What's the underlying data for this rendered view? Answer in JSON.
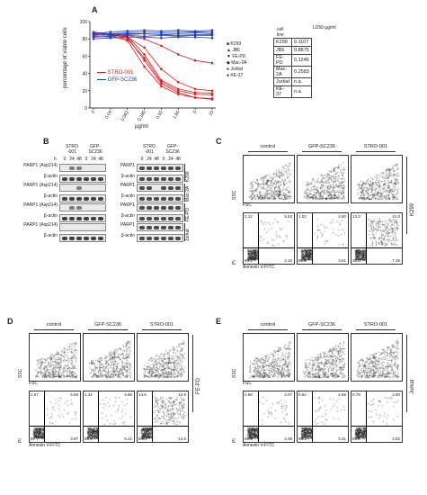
{
  "panelA": {
    "letter": "A",
    "ylabel": "percentage of viable cells",
    "xlabel": "µg/ml",
    "legend_drugs": [
      "STRO-001",
      "GFP-SC236"
    ],
    "legend_cells": [
      "K299",
      "JB6",
      "FE-PD",
      "Mac-2A",
      "Jurkat",
      "KE-37"
    ],
    "table": {
      "head1": "cell line",
      "head2": "LD50 µg/ml",
      "rows": [
        [
          "K299",
          "0.1107"
        ],
        [
          "JB6",
          "0.8875"
        ],
        [
          "FE-PD",
          "0.1245"
        ],
        [
          "Mac-2A",
          "0.2583"
        ],
        [
          "Jurkat",
          "n.a."
        ],
        [
          "KE-37",
          "n.a."
        ]
      ]
    },
    "chart_data": {
      "type": "line",
      "categories": [
        "0",
        "0.04",
        "0.062",
        "0.185",
        "0.55",
        "1.66",
        "5",
        "15"
      ],
      "ylim": [
        0,
        100
      ],
      "yticks": [
        "0",
        "20",
        "40",
        "60",
        "80",
        "100"
      ],
      "series": [
        {
          "name": "STRO-001 K299",
          "color": "#e41a1c",
          "values": [
            88,
            85,
            82,
            55,
            28,
            18,
            12,
            10
          ]
        },
        {
          "name": "STRO-001 JB6",
          "color": "#e41a1c",
          "values": [
            86,
            86,
            84,
            80,
            72,
            62,
            55,
            52
          ]
        },
        {
          "name": "STRO-001 FE-PD",
          "color": "#e41a1c",
          "values": [
            87,
            84,
            78,
            48,
            25,
            16,
            12,
            11
          ]
        },
        {
          "name": "STRO-001 Mac-2A",
          "color": "#e41a1c",
          "values": [
            85,
            84,
            82,
            70,
            45,
            30,
            22,
            20
          ]
        },
        {
          "name": "STRO-001 Jurkat",
          "color": "#e41a1c",
          "values": [
            85,
            84,
            83,
            62,
            32,
            22,
            18,
            17
          ]
        },
        {
          "name": "STRO-001 KE-37",
          "color": "#e41a1c",
          "values": [
            83,
            82,
            80,
            58,
            30,
            20,
            16,
            15
          ]
        },
        {
          "name": "GFP-SC236 K299",
          "color": "#1f3fbf",
          "values": [
            86,
            88,
            89,
            90,
            89,
            90,
            89,
            90
          ]
        },
        {
          "name": "GFP-SC236 JB6",
          "color": "#1f3fbf",
          "values": [
            84,
            85,
            86,
            86,
            85,
            86,
            87,
            86
          ]
        },
        {
          "name": "GFP-SC236 FE-PD",
          "color": "#1f3fbf",
          "values": [
            82,
            83,
            84,
            83,
            84,
            83,
            84,
            84
          ]
        },
        {
          "name": "GFP-SC236 Mac-2A",
          "color": "#1f3fbf",
          "values": [
            85,
            84,
            85,
            86,
            85,
            84,
            85,
            85
          ]
        },
        {
          "name": "GFP-SC236 Jurkat",
          "color": "#1f3fbf",
          "values": [
            80,
            81,
            82,
            82,
            81,
            82,
            82,
            81
          ]
        },
        {
          "name": "GFP-SC236 KE-37",
          "color": "#1f3fbf",
          "values": [
            87,
            86,
            87,
            88,
            87,
            88,
            88,
            88
          ]
        }
      ]
    }
  },
  "panelB": {
    "letter": "B",
    "group1": "STRO -001",
    "group2": "GFP- SC236",
    "h_label": "h",
    "timepoints": [
      "0",
      "24",
      "48",
      "0",
      "24",
      "48"
    ],
    "left_rows": [
      "PARP1 (Asp214)",
      "β-actin",
      "PARP1 (Asp214)",
      "β-actin",
      "PARP1 (Asp214)",
      "β-actin",
      "PARP1 (Asp214)",
      "β-actin"
    ],
    "right_rows": [
      "PARP1",
      "β-actin",
      "PARP1",
      "β-actin",
      "PARP1",
      "β-actin",
      "PARP1",
      "β-actin"
    ],
    "cell_lines": [
      "K299",
      "Mac-2A",
      "FE-PD",
      "Jurkat"
    ]
  },
  "facs": {
    "groups": [
      "control",
      "GFP-SC236",
      "STRO-001"
    ],
    "ssc": "SSC",
    "fsc": "FSC",
    "pi": "PI",
    "annexin": "Annexin V-FITC",
    "C": {
      "letter": "C",
      "cell": "K299",
      "quads": [
        [
          "2.12",
          "5.53",
          "90.2",
          "2.16"
        ],
        [
          "1.02",
          "4.80",
          "90.6",
          "3.61"
        ],
        [
          "13.3",
          "41.0",
          "38.3",
          "7.36"
        ]
      ]
    },
    "D": {
      "letter": "D",
      "cell": "FE-PD",
      "quads": [
        [
          "2.67",
          "5.68",
          "87.7",
          "3.97"
        ],
        [
          "1.34",
          "4.65",
          "88.8",
          "5.21"
        ],
        [
          "14.6",
          "12.8",
          "58.0",
          "14.5"
        ]
      ]
    },
    "E": {
      "letter": "E",
      "cell": "Jurkat",
      "quads": [
        [
          "0.68",
          "3.07",
          "92.9",
          "3.38"
        ],
        [
          "0.62",
          "2.68",
          "93.3",
          "3.41"
        ],
        [
          "0.79",
          "2.80",
          "93.6",
          "2.82"
        ]
      ]
    }
  }
}
